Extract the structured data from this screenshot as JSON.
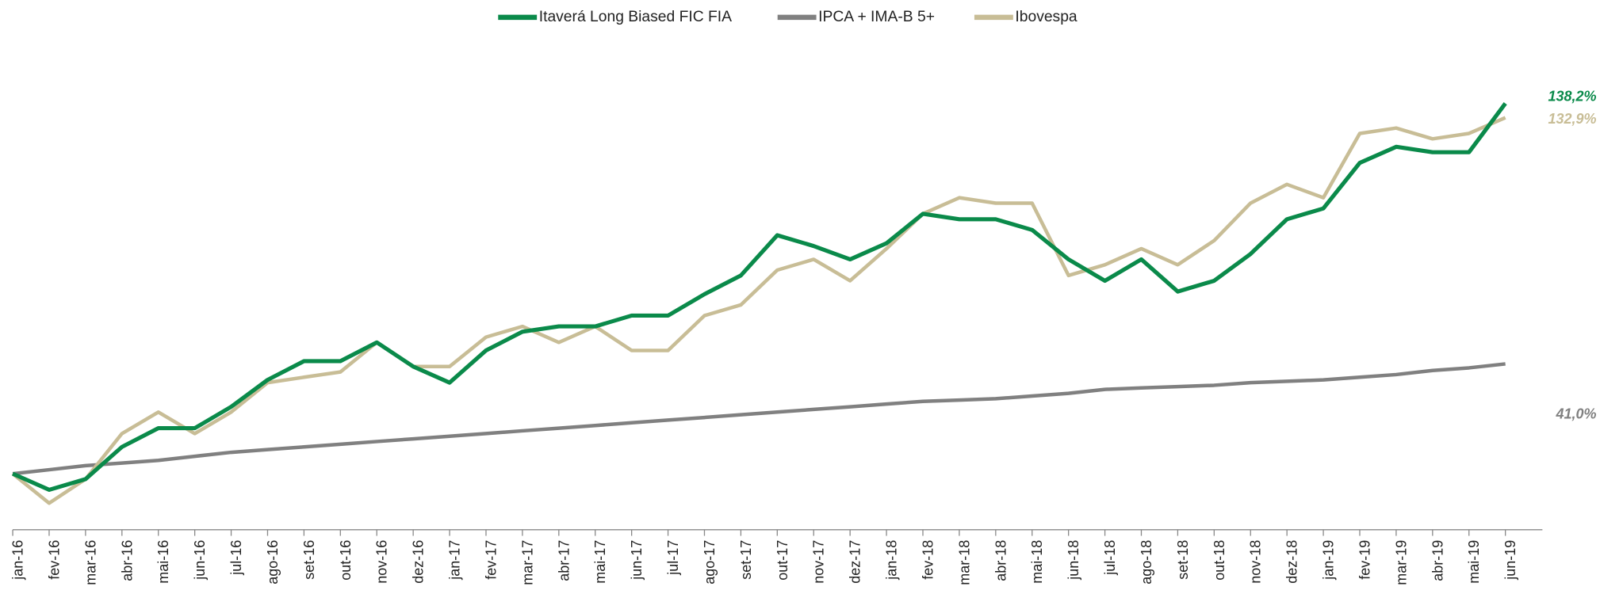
{
  "chart_data": {
    "type": "line",
    "categories": [
      "jan-16",
      "fev-16",
      "mar-16",
      "abr-16",
      "mai-16",
      "jun-16",
      "jul-16",
      "ago-16",
      "set-16",
      "out-16",
      "nov-16",
      "dez-16",
      "jan-17",
      "fev-17",
      "mar-17",
      "abr-17",
      "mai-17",
      "jun-17",
      "jul-17",
      "ago-17",
      "set-17",
      "out-17",
      "nov-17",
      "dez-17",
      "jan-18",
      "fev-18",
      "mar-18",
      "abr-18",
      "mai-18",
      "jun-18",
      "jul-18",
      "ago-18",
      "set-18",
      "out-18",
      "nov-18",
      "dez-18",
      "jan-19",
      "fev-19",
      "mar-19",
      "abr-19",
      "mai-19",
      "jun-19"
    ],
    "series": [
      {
        "name": "Itaverá Long Biased FIC FIA",
        "color": "#0a8a4a",
        "end_label": "138,2%",
        "values": [
          0,
          -6,
          -2,
          10,
          17,
          17,
          25,
          35,
          42,
          42,
          49,
          40,
          34,
          46,
          53,
          55,
          55,
          59,
          59,
          67,
          74,
          89,
          85,
          80,
          86,
          97,
          95,
          95,
          91,
          80,
          72,
          80,
          68,
          72,
          82,
          95,
          99,
          116,
          122,
          120,
          120,
          138.2
        ]
      },
      {
        "name": "IPCA + IMA-B 5+",
        "color": "#808080",
        "end_label": "41,0%",
        "values": [
          0,
          1.5,
          3,
          4,
          5,
          6.5,
          8,
          9,
          10,
          11,
          12,
          13,
          14,
          15,
          16,
          17,
          18,
          19,
          20,
          21,
          22,
          23,
          24,
          25,
          26,
          27,
          27.5,
          28,
          29,
          30,
          31.5,
          32,
          32.5,
          33,
          34,
          34.5,
          35,
          36,
          37,
          38.5,
          39.5,
          41
        ]
      },
      {
        "name": "Ibovespa",
        "color": "#c8bd96",
        "end_label": "132,9%",
        "values": [
          0,
          -11,
          -2,
          15,
          23,
          15,
          23,
          34,
          36,
          38,
          49,
          40,
          40,
          51,
          55,
          49,
          55,
          46,
          46,
          59,
          63,
          76,
          80,
          72,
          84,
          97,
          103,
          101,
          101,
          74,
          78,
          84,
          78,
          87,
          101,
          108,
          103,
          127,
          129,
          125,
          127,
          132.9
        ]
      }
    ]
  }
}
